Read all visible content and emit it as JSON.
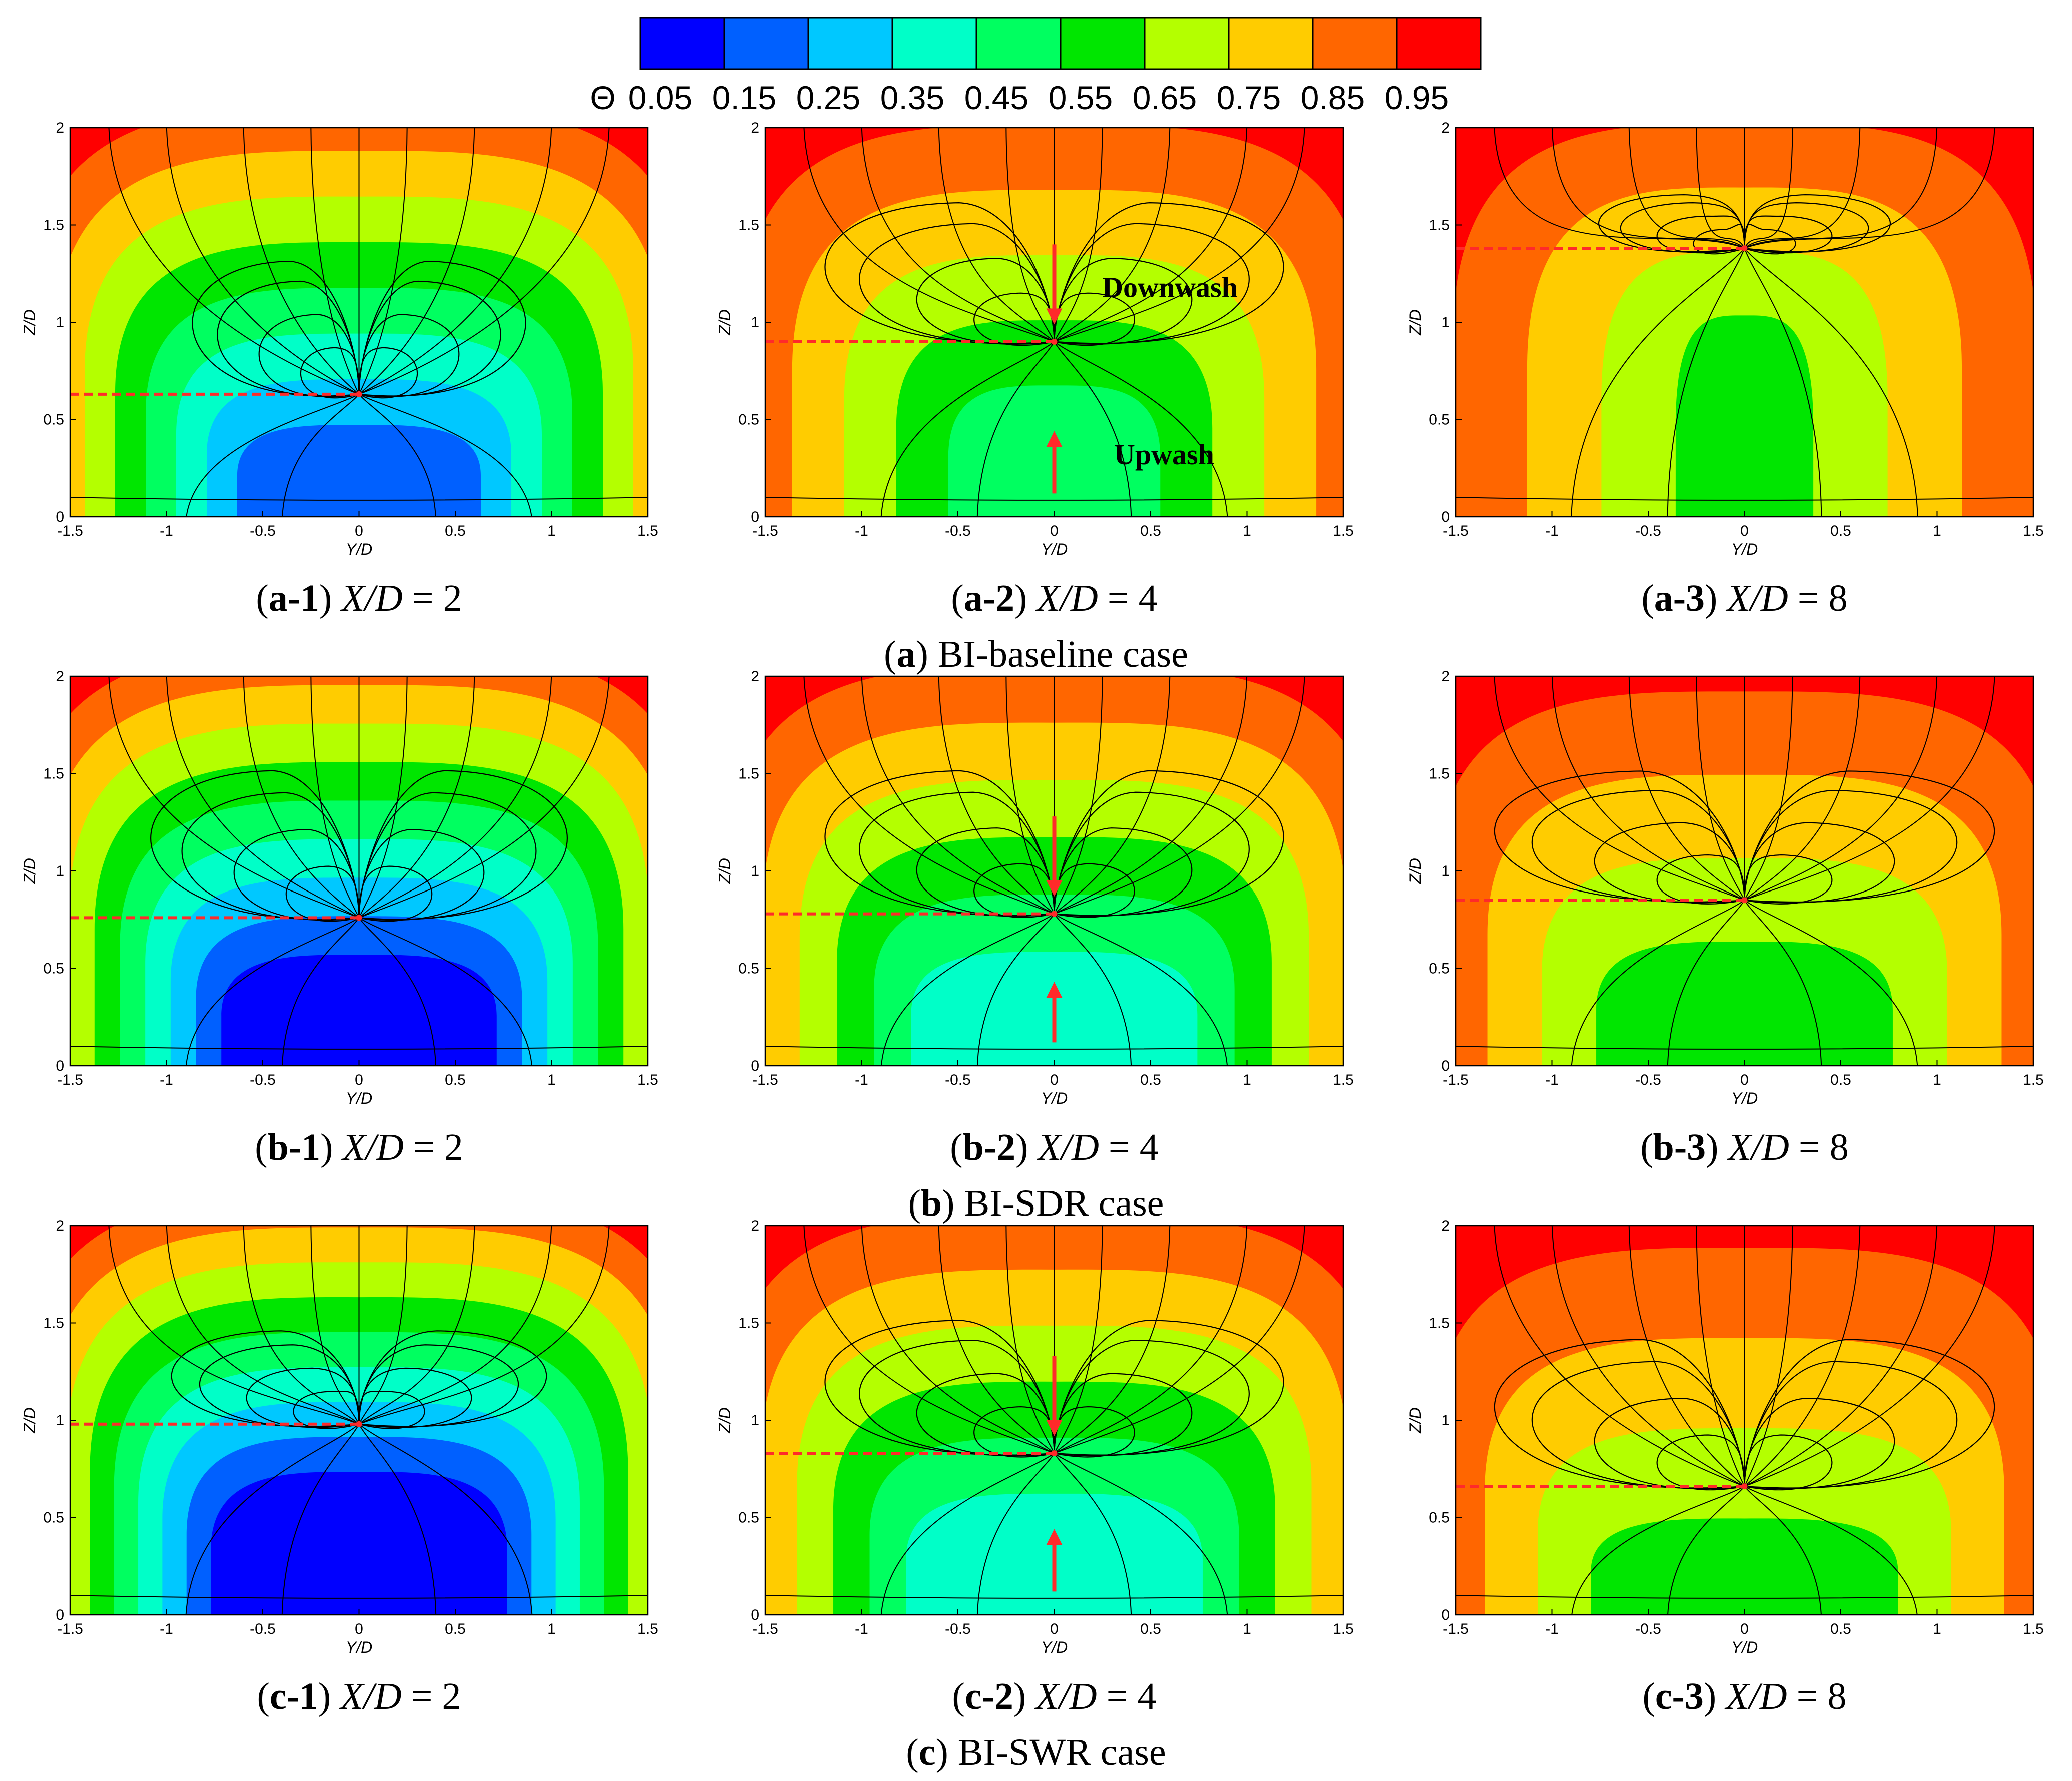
{
  "colorbar": {
    "symbol": "Θ",
    "colors": [
      "#0000ff",
      "#0060ff",
      "#00c8ff",
      "#00ffc8",
      "#00ff60",
      "#00e600",
      "#00dd00",
      "#b4ff00",
      "#ffcc00",
      "#ff6600",
      "#ff0000"
    ],
    "tick_labels": [
      "0.05",
      "0.15",
      "0.25",
      "0.35",
      "0.45",
      "0.55",
      "0.65",
      "0.75",
      "0.85",
      "0.95"
    ]
  },
  "axes": {
    "x_label": "Y/D",
    "y_label": "Z/D",
    "x_ticks": [
      "-1.5",
      "-1",
      "-0.5",
      "0",
      "0.5",
      "1",
      "1.5"
    ],
    "y_ticks": [
      "0",
      "0.5",
      "1",
      "1.5",
      "2"
    ]
  },
  "annotations": {
    "downwash": "Downwash",
    "upwash": "Upwash"
  },
  "rows": [
    {
      "letter": "a",
      "caption_prefix": "(",
      "caption_close": ")",
      "caption_text": "BI-baseline case",
      "panels": [
        {
          "tag": "a-1",
          "station": "X/D",
          "value": "= 2"
        },
        {
          "tag": "a-2",
          "station": "X/D",
          "value": "= 4"
        },
        {
          "tag": "a-3",
          "station": "X/D",
          "value": "= 8"
        }
      ]
    },
    {
      "letter": "b",
      "caption_prefix": "(",
      "caption_close": ")",
      "caption_text": "BI-SDR case",
      "panels": [
        {
          "tag": "b-1",
          "station": "X/D",
          "value": "= 2"
        },
        {
          "tag": "b-2",
          "station": "X/D",
          "value": "= 4"
        },
        {
          "tag": "b-3",
          "station": "X/D",
          "value": "= 8"
        }
      ]
    },
    {
      "letter": "c",
      "caption_prefix": "(",
      "caption_close": ")",
      "caption_text": "BI-SWR case",
      "panels": [
        {
          "tag": "c-1",
          "station": "X/D",
          "value": "= 2"
        },
        {
          "tag": "c-2",
          "station": "X/D",
          "value": "= 4"
        },
        {
          "tag": "c-3",
          "station": "X/D",
          "value": "= 8"
        }
      ]
    }
  ],
  "chart_data": {
    "type": "heatmap",
    "variable": "Θ",
    "levels": [
      0.05,
      0.15,
      0.25,
      0.35,
      0.45,
      0.55,
      0.65,
      0.75,
      0.85,
      0.95
    ],
    "xlabel": "Y/D",
    "ylabel": "Z/D",
    "xlim": [
      -1.5,
      1.5
    ],
    "ylim": [
      0,
      2
    ],
    "panels": [
      {
        "id": "a-1",
        "case": "BI-baseline",
        "x_over_d": 2,
        "core_theta": 0.15,
        "edge_theta": 0.95,
        "vortex_center_z": 0.63,
        "vortex_half_span": 0.4,
        "pair_top_z": 1.3,
        "core_half_width": 1.15
      },
      {
        "id": "a-2",
        "case": "BI-baseline",
        "x_over_d": 4,
        "core_theta": 0.45,
        "edge_theta": 0.95,
        "vortex_center_z": 0.9,
        "vortex_half_span": 0.55,
        "pair_top_z": 1.6,
        "core_half_width": 1.0
      },
      {
        "id": "a-3",
        "case": "BI-baseline",
        "x_over_d": 8,
        "core_theta": 0.55,
        "edge_theta": 0.95,
        "vortex_center_z": 1.38,
        "vortex_half_span": 0.35,
        "pair_top_z": 1.65,
        "core_half_width": 0.65
      },
      {
        "id": "b-1",
        "case": "BI-SDR",
        "x_over_d": 2,
        "core_theta": 0.05,
        "edge_theta": 0.95,
        "vortex_center_z": 0.76,
        "vortex_half_span": 0.5,
        "pair_top_z": 1.5,
        "core_half_width": 1.3
      },
      {
        "id": "b-2",
        "case": "BI-SDR",
        "x_over_d": 4,
        "core_theta": 0.35,
        "edge_theta": 0.95,
        "vortex_center_z": 0.78,
        "vortex_half_span": 0.55,
        "pair_top_z": 1.5,
        "core_half_width": 1.35
      },
      {
        "id": "b-3",
        "case": "BI-SDR",
        "x_over_d": 8,
        "core_theta": 0.55,
        "edge_theta": 0.95,
        "vortex_center_z": 0.85,
        "vortex_half_span": 0.6,
        "pair_top_z": 1.5,
        "core_half_width": 1.4
      },
      {
        "id": "c-1",
        "case": "BI-SWR",
        "x_over_d": 2,
        "core_theta": 0.05,
        "edge_theta": 0.95,
        "vortex_center_z": 0.98,
        "vortex_half_span": 0.45,
        "pair_top_z": 1.45,
        "core_half_width": 1.4
      },
      {
        "id": "c-2",
        "case": "BI-SWR",
        "x_over_d": 4,
        "core_theta": 0.35,
        "edge_theta": 0.95,
        "vortex_center_z": 0.83,
        "vortex_half_span": 0.55,
        "pair_top_z": 1.5,
        "core_half_width": 1.4
      },
      {
        "id": "c-3",
        "case": "BI-SWR",
        "x_over_d": 8,
        "core_theta": 0.55,
        "edge_theta": 0.95,
        "vortex_center_z": 0.66,
        "vortex_half_span": 0.6,
        "pair_top_z": 1.4,
        "core_half_width": 1.45
      }
    ]
  }
}
